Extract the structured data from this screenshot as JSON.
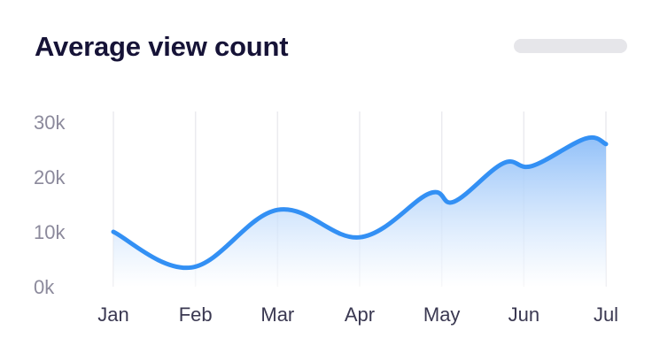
{
  "card": {
    "title": "Average view count"
  },
  "chart_data": {
    "type": "area",
    "title": "Average view count",
    "xlabel": "",
    "ylabel": "",
    "categories": [
      "Jan",
      "Feb",
      "Mar",
      "Apr",
      "May",
      "Jun",
      "Jul"
    ],
    "yticks": [
      "0k",
      "10k",
      "20k",
      "30k"
    ],
    "ylim": [
      0,
      30000
    ],
    "grid": "vertical",
    "legend": "none",
    "series": [
      {
        "points": [
          {
            "x": 0.0,
            "y": 10000
          },
          {
            "x": 0.95,
            "y": 3500
          },
          {
            "x": 2.0,
            "y": 14000
          },
          {
            "x": 3.0,
            "y": 9000
          },
          {
            "x": 3.85,
            "y": 17000
          },
          {
            "x": 4.15,
            "y": 15500
          },
          {
            "x": 4.75,
            "y": 22500
          },
          {
            "x": 5.1,
            "y": 22000
          },
          {
            "x": 5.75,
            "y": 27000
          },
          {
            "x": 6.0,
            "y": 26000
          }
        ]
      }
    ],
    "colors": {
      "line": "#3390f4",
      "fill_top": "#8cbdf8",
      "fill_bottom": "#ffffff",
      "grid": "#ebebef"
    }
  }
}
